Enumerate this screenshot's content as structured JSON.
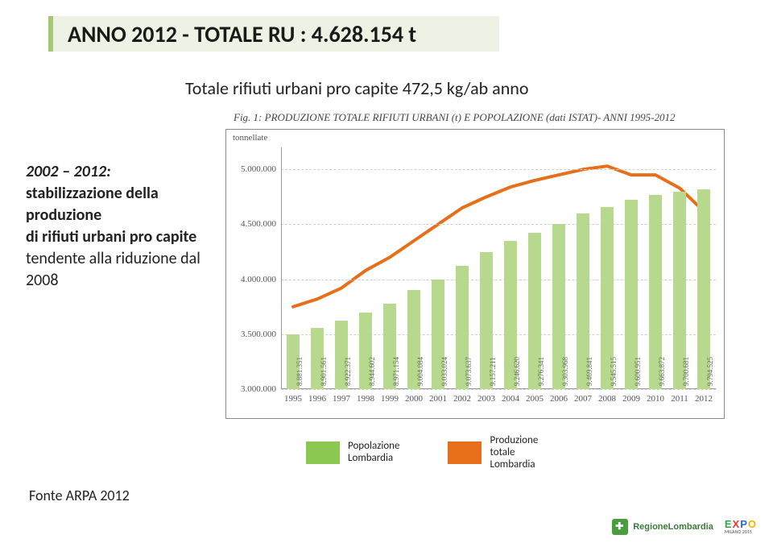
{
  "title": "ANNO 2012 - TOTALE RU : 4.628.154 t",
  "subtitle": "Totale rifiuti urbani pro capite 472,5 kg/ab anno",
  "fig_caption": "Fig. 1:   PRODUZIONE TOTALE RIFIUTI URBANI (t) E POPOLAZIONE (dati ISTAT)- ANNI 1995-2012",
  "side_text": {
    "l1": "2002 – 2012:",
    "l2": "stabilizzazione della produzione",
    "l3": "di rifiuti urbani pro capite",
    "l4": "tendente alla riduzione dal 2008"
  },
  "chart": {
    "type": "combo-bar-line",
    "yaxis_label": "tonnellate",
    "ylim": [
      3000000,
      5200000
    ],
    "yticks": [
      3000000,
      3500000,
      4000000,
      4500000,
      5000000
    ],
    "ytick_labels": [
      "3.000.000",
      "3.500.000",
      "4.000.000",
      "4.500.000",
      "5.000.000"
    ],
    "years": [
      1995,
      1996,
      1997,
      1998,
      1999,
      2000,
      2001,
      2002,
      2003,
      2004,
      2005,
      2006,
      2007,
      2008,
      2009,
      2010,
      2011,
      2012
    ],
    "bar_values": [
      3500000,
      3560000,
      3620000,
      3700000,
      3780000,
      3900000,
      4000000,
      4120000,
      4250000,
      4350000,
      4420000,
      4500000,
      4600000,
      4660000,
      4720000,
      4770000,
      4800000,
      4820000
    ],
    "bar_labels": [
      "8.881.351",
      "8.901.561",
      "8.922.371",
      "8.944.602",
      "8.971.154",
      "9.004.084",
      "9.033.024",
      "9.073.637",
      "9.157.211",
      "9.246.620",
      "9.276.341",
      "9.303.968",
      "9.469.841",
      "9.545.515",
      "9.600.951",
      "9.663.872",
      "9.700.681",
      "9.794.525"
    ],
    "line_values": [
      3750000,
      3820000,
      3920000,
      4080000,
      4200000,
      4350000,
      4500000,
      4650000,
      4750000,
      4840000,
      4900000,
      4950000,
      5000000,
      5030000,
      4950000,
      4950000,
      4830000,
      4620000
    ],
    "bar_color": "#b7d98e",
    "line_color": "#e86f1a",
    "line_width": 4,
    "grid_color": "#cfcfcf",
    "border_color": "#8a8a8a",
    "background_color": "#ffffff",
    "bar_width_ratio": 0.55,
    "font_family": "Times New Roman",
    "tick_fontsize": 11,
    "barlabel_fontsize": 9
  },
  "legend": {
    "item1": {
      "label": "Popolazione\nLombardia",
      "color": "#8cc751"
    },
    "item2": {
      "label": "Produzione\ntotale\nLombardia",
      "color": "#e86f1a"
    }
  },
  "source": "Fonte ARPA 2012",
  "footer": {
    "regione": "RegioneLombardia",
    "expo_sub": "MILANO 2015"
  }
}
